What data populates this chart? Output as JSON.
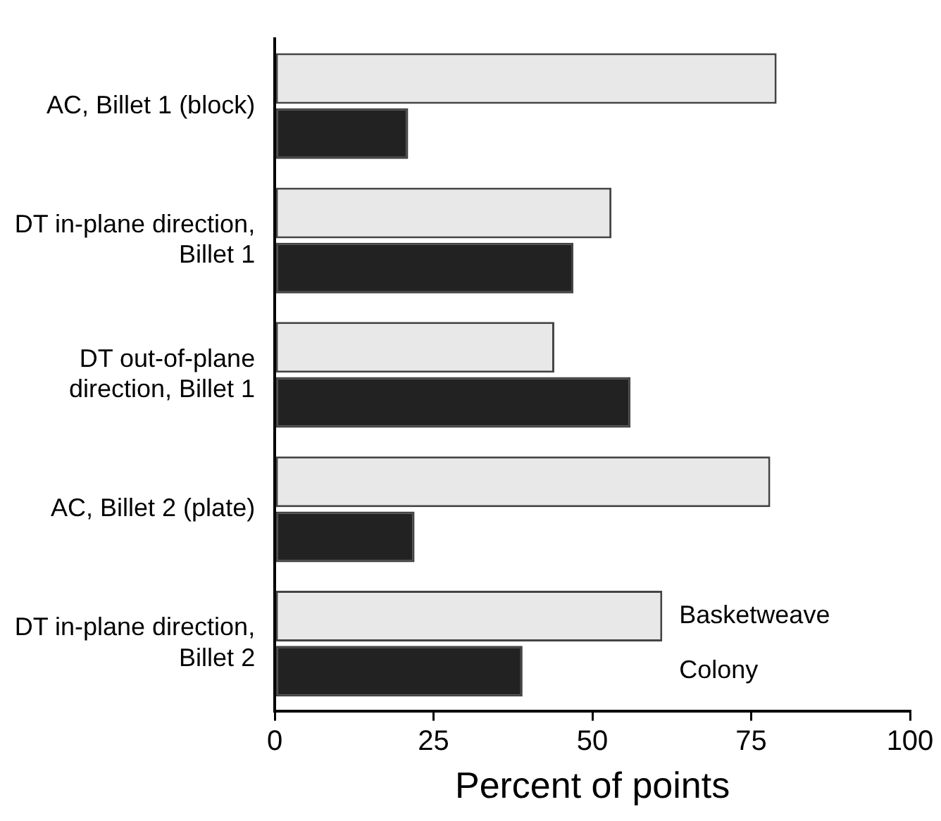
{
  "chart_data": {
    "type": "bar",
    "orientation": "horizontal",
    "xlabel": "Percent of points",
    "categories": [
      "AC, Billet 1 (block)",
      "DT in-plane direction, Billet 1",
      "DT out-of-plane direction, Billet 1",
      "AC, Billet 2 (plate)",
      "DT in-plane direction, Billet 2"
    ],
    "series": [
      {
        "name": "Basketweave",
        "color": "#e8e8e8",
        "values": [
          79,
          53,
          44,
          78,
          61
        ]
      },
      {
        "name": "Colony",
        "color": "#222222",
        "values": [
          21,
          47,
          56,
          22,
          39
        ]
      }
    ],
    "xlim": [
      0,
      100
    ],
    "xticks": [
      0,
      25,
      50,
      75,
      100
    ],
    "grid": false
  }
}
